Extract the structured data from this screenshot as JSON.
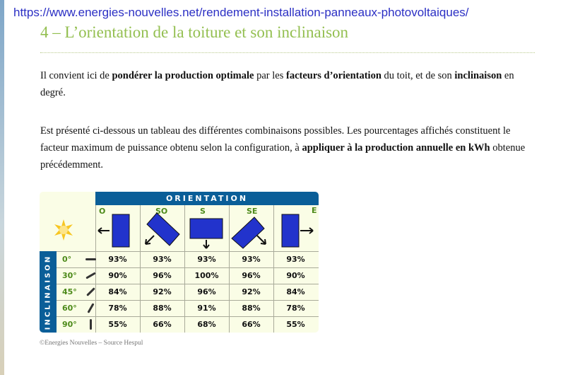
{
  "url": "https://www.energies-nouvelles.net/rendement-installation-panneaux-photovoltaiques/",
  "heading": "4 – L’orientation de la toiture et son inclinaison",
  "para1": [
    {
      "t": "Il convient ici de ",
      "b": false
    },
    {
      "t": "pondérer la production optimale",
      "b": true
    },
    {
      "t": " par les ",
      "b": false
    },
    {
      "t": "facteurs d’orientation",
      "b": true
    },
    {
      "t": " du toit, et de son ",
      "b": false
    },
    {
      "t": "inclinaison",
      "b": true
    },
    {
      "t": " en degré.",
      "b": false
    }
  ],
  "para2": [
    {
      "t": "Est présenté ci-dessous un tableau des différentes combinaisons possibles. Les pourcentages affichés constituent le facteur maximum de puissance obtenu selon la configuration, à ",
      "b": false
    },
    {
      "t": "appliquer à la production annuelle en kWh",
      "b": true
    },
    {
      "t": " obtenue précédemment.",
      "b": false
    }
  ],
  "table": {
    "header": "ORIENTATION",
    "side": "INCLINAISON",
    "columns": [
      "O",
      "SO",
      "S",
      "SE",
      "E"
    ],
    "rows": [
      {
        "angle": "0°",
        "values": [
          "93%",
          "93%",
          "93%",
          "93%",
          "93%"
        ]
      },
      {
        "angle": "30°",
        "values": [
          "90%",
          "96%",
          "100%",
          "96%",
          "90%"
        ]
      },
      {
        "angle": "45°",
        "values": [
          "84%",
          "92%",
          "96%",
          "92%",
          "84%"
        ]
      },
      {
        "angle": "60°",
        "values": [
          "78%",
          "88%",
          "91%",
          "88%",
          "78%"
        ]
      },
      {
        "angle": "90°",
        "values": [
          "55%",
          "66%",
          "68%",
          "66%",
          "55%"
        ]
      }
    ],
    "colors": {
      "header": "#0a5e98",
      "panel": "#2233cc",
      "label": "#4d8a1a",
      "background": "#fafde6"
    }
  },
  "credit": "©Energies Nouvelles – Source Hespul"
}
